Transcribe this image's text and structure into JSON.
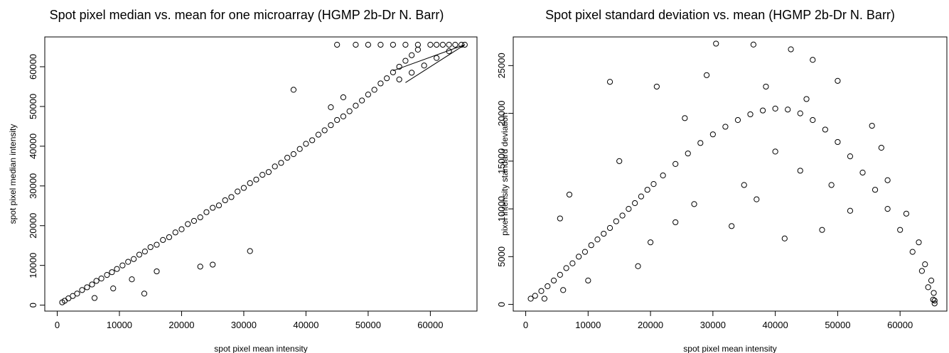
{
  "chart_data": [
    {
      "type": "scatter",
      "title": "Spot pixel median vs. mean for one microarray (HGMP 2b-Dr N. Barr)",
      "xlabel": "spot pixel mean intensity",
      "ylabel": "spot pixel median intensity",
      "xlim": [
        -2000,
        67500
      ],
      "ylim": [
        -1500,
        67500
      ],
      "xticks": [
        "0",
        "10000",
        "20000",
        "30000",
        "40000",
        "50000",
        "60000"
      ],
      "xtick_values": [
        0,
        10000,
        20000,
        30000,
        40000,
        50000,
        60000
      ],
      "yticks": [
        "0",
        "10000",
        "20000",
        "30000",
        "40000",
        "50000",
        "60000"
      ],
      "ytick_values": [
        0,
        10000,
        20000,
        30000,
        40000,
        50000,
        60000
      ],
      "grid": false,
      "marker": "open-circle",
      "relationship": "median approximately equal to mean; saturation cluster near 65535",
      "saturation_lines": [
        [
          [
            56000,
            56000
          ],
          [
            65535,
            65535
          ]
        ],
        [
          [
            54000,
            59000
          ],
          [
            65535,
            65535
          ]
        ]
      ],
      "points": [
        [
          800,
          700
        ],
        [
          1200,
          1100
        ],
        [
          1800,
          1700
        ],
        [
          2500,
          2300
        ],
        [
          3200,
          2900
        ],
        [
          4000,
          3800
        ],
        [
          4800,
          4500
        ],
        [
          5600,
          5200
        ],
        [
          6300,
          6100
        ],
        [
          7100,
          6700
        ],
        [
          8000,
          7600
        ],
        [
          8800,
          8300
        ],
        [
          9600,
          9100
        ],
        [
          10500,
          10000
        ],
        [
          11400,
          10900
        ],
        [
          12300,
          11600
        ],
        [
          13200,
          12700
        ],
        [
          14100,
          13500
        ],
        [
          15000,
          14600
        ],
        [
          16000,
          15200
        ],
        [
          17000,
          16400
        ],
        [
          18000,
          17100
        ],
        [
          19000,
          18300
        ],
        [
          20000,
          19100
        ],
        [
          21000,
          20400
        ],
        [
          22000,
          21200
        ],
        [
          23000,
          22100
        ],
        [
          24000,
          23400
        ],
        [
          25000,
          24500
        ],
        [
          26000,
          25100
        ],
        [
          27000,
          26400
        ],
        [
          28000,
          27200
        ],
        [
          29000,
          28600
        ],
        [
          30000,
          29500
        ],
        [
          31000,
          30700
        ],
        [
          32000,
          31600
        ],
        [
          33000,
          32800
        ],
        [
          34000,
          33500
        ],
        [
          35000,
          34900
        ],
        [
          36000,
          35800
        ],
        [
          37000,
          37100
        ],
        [
          38000,
          38000
        ],
        [
          39000,
          39300
        ],
        [
          40000,
          40600
        ],
        [
          41000,
          41500
        ],
        [
          42000,
          42900
        ],
        [
          43000,
          44000
        ],
        [
          44000,
          45300
        ],
        [
          45000,
          46600
        ],
        [
          46000,
          47500
        ],
        [
          47000,
          48800
        ],
        [
          48000,
          50200
        ],
        [
          49000,
          51500
        ],
        [
          50000,
          53000
        ],
        [
          51000,
          54200
        ],
        [
          52000,
          55800
        ],
        [
          53000,
          57100
        ],
        [
          54000,
          58600
        ],
        [
          55000,
          60000
        ],
        [
          56000,
          61500
        ],
        [
          57000,
          62900
        ],
        [
          58000,
          64300
        ],
        [
          12000,
          6500
        ],
        [
          9000,
          4200
        ],
        [
          16000,
          8500
        ],
        [
          14000,
          2900
        ],
        [
          25000,
          10200
        ],
        [
          31000,
          13600
        ],
        [
          23000,
          9700
        ],
        [
          6000,
          1800
        ],
        [
          38000,
          54200
        ],
        [
          45000,
          65535
        ],
        [
          48000,
          65535
        ],
        [
          50000,
          65535
        ],
        [
          52000,
          65535
        ],
        [
          54000,
          65535
        ],
        [
          56000,
          65535
        ],
        [
          58000,
          65535
        ],
        [
          60000,
          65535
        ],
        [
          61000,
          65535
        ],
        [
          62000,
          65535
        ],
        [
          63000,
          65535
        ],
        [
          64000,
          65535
        ],
        [
          65000,
          65535
        ],
        [
          65535,
          65535
        ],
        [
          55000,
          56800
        ],
        [
          57000,
          58500
        ],
        [
          59000,
          60300
        ],
        [
          61000,
          62200
        ],
        [
          63000,
          63900
        ],
        [
          46000,
          52300
        ],
        [
          44000,
          49800
        ]
      ]
    },
    {
      "type": "scatter",
      "title": "Spot pixel standard deviation vs. mean (HGMP 2b-Dr N. Barr)",
      "xlabel": "spot pixel mean intensity",
      "ylabel": "pixel intensity standard deviation",
      "xlim": [
        -2000,
        67500
      ],
      "ylim": [
        -700,
        28000
      ],
      "xticks": [
        "0",
        "10000",
        "20000",
        "30000",
        "40000",
        "50000",
        "60000"
      ],
      "xtick_values": [
        0,
        10000,
        20000,
        30000,
        40000,
        50000,
        60000
      ],
      "yticks": [
        "0",
        "5000",
        "10000",
        "15000",
        "20000",
        "25000"
      ],
      "ytick_values": [
        0,
        5000,
        10000,
        15000,
        20000,
        25000
      ],
      "grid": false,
      "marker": "open-circle",
      "relationship": "inverted-parabola shape; std rises with mean, peaks near 35000-40000, falls to 0 at saturation",
      "points": [
        [
          800,
          600
        ],
        [
          1500,
          900
        ],
        [
          2500,
          1400
        ],
        [
          3500,
          1900
        ],
        [
          4500,
          2500
        ],
        [
          5500,
          3100
        ],
        [
          6500,
          3800
        ],
        [
          7500,
          4300
        ],
        [
          8500,
          5000
        ],
        [
          9500,
          5500
        ],
        [
          10500,
          6200
        ],
        [
          11500,
          6800
        ],
        [
          12500,
          7400
        ],
        [
          13500,
          8000
        ],
        [
          14500,
          8700
        ],
        [
          15500,
          9300
        ],
        [
          16500,
          10000
        ],
        [
          17500,
          10600
        ],
        [
          18500,
          11300
        ],
        [
          19500,
          12000
        ],
        [
          20500,
          12600
        ],
        [
          22000,
          13500
        ],
        [
          24000,
          14700
        ],
        [
          26000,
          15800
        ],
        [
          28000,
          16900
        ],
        [
          30000,
          17800
        ],
        [
          32000,
          18600
        ],
        [
          34000,
          19300
        ],
        [
          36000,
          19900
        ],
        [
          38000,
          20300
        ],
        [
          40000,
          20500
        ],
        [
          42000,
          20400
        ],
        [
          44000,
          20000
        ],
        [
          46000,
          19300
        ],
        [
          48000,
          18300
        ],
        [
          50000,
          17000
        ],
        [
          52000,
          15500
        ],
        [
          54000,
          13800
        ],
        [
          56000,
          12000
        ],
        [
          58000,
          10000
        ],
        [
          60000,
          7800
        ],
        [
          62000,
          5500
        ],
        [
          63500,
          3500
        ],
        [
          64500,
          1800
        ],
        [
          65300,
          500
        ],
        [
          65535,
          100
        ],
        [
          7000,
          11500
        ],
        [
          5500,
          9000
        ],
        [
          13500,
          23300
        ],
        [
          30500,
          27300
        ],
        [
          36500,
          27200
        ],
        [
          38500,
          22800
        ],
        [
          42500,
          26700
        ],
        [
          46000,
          25600
        ],
        [
          21000,
          22800
        ],
        [
          25500,
          19500
        ],
        [
          18000,
          4000
        ],
        [
          27000,
          10500
        ],
        [
          33000,
          8200
        ],
        [
          41500,
          6900
        ],
        [
          47500,
          7800
        ],
        [
          52000,
          9800
        ],
        [
          57000,
          16400
        ],
        [
          55500,
          18700
        ],
        [
          44000,
          14000
        ],
        [
          35000,
          12500
        ],
        [
          50000,
          23400
        ],
        [
          29000,
          24000
        ],
        [
          40000,
          16000
        ],
        [
          45000,
          21500
        ],
        [
          24000,
          8600
        ],
        [
          15000,
          15000
        ],
        [
          10000,
          2500
        ],
        [
          3000,
          600
        ],
        [
          6000,
          1500
        ],
        [
          20000,
          6500
        ],
        [
          37000,
          11000
        ],
        [
          49000,
          12500
        ],
        [
          58000,
          13000
        ],
        [
          61000,
          9500
        ],
        [
          63000,
          6500
        ],
        [
          64000,
          4200
        ],
        [
          65000,
          2500
        ],
        [
          65400,
          1200
        ],
        [
          65535,
          400
        ]
      ]
    }
  ]
}
